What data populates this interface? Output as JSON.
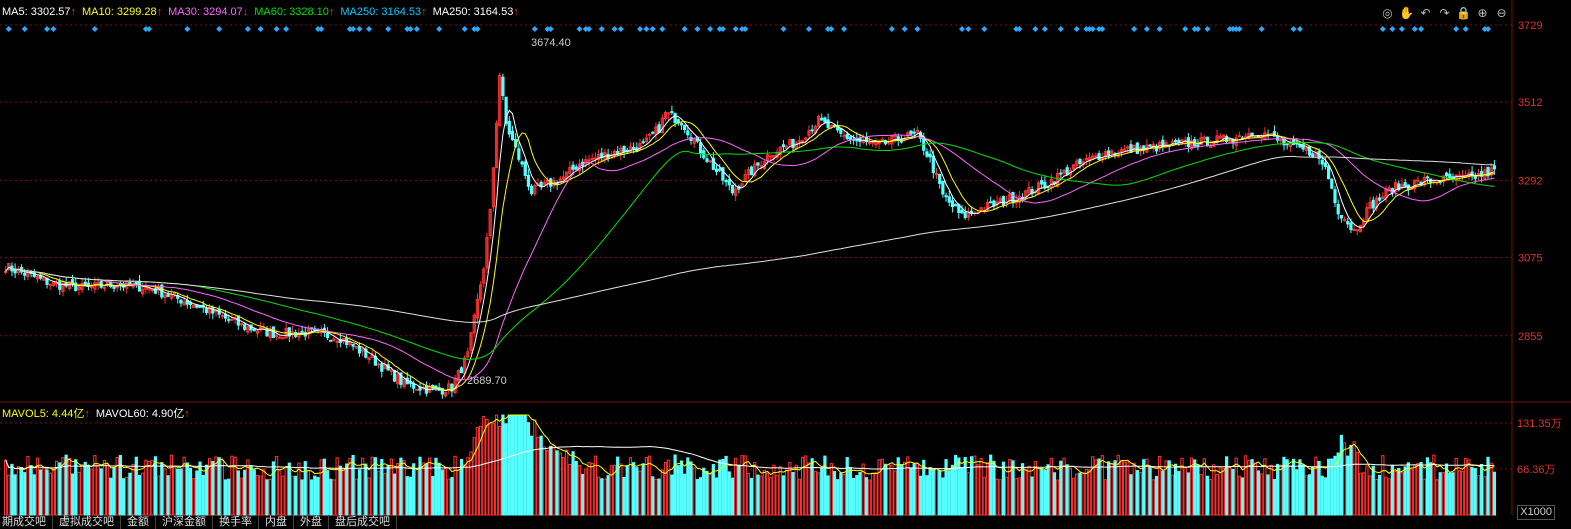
{
  "price_legend": [
    {
      "label": "MA5: 3302.57",
      "arrow": "↑",
      "color": "#ffffff"
    },
    {
      "label": "MA10: 3299.28",
      "arrow": "↑",
      "color": "#ffff00"
    },
    {
      "label": "MA30: 3294.07",
      "arrow": "↓",
      "color": "#ff66ff"
    },
    {
      "label": "MA60: 3328.10",
      "arrow": "↑",
      "color": "#00e000"
    },
    {
      "label": "MA250: 3164.53",
      "arrow": "↑",
      "color": "#00ccff"
    },
    {
      "label": "MA250: 3164.53",
      "arrow": "↑",
      "color": "#ffffff"
    }
  ],
  "vol_legend": [
    {
      "label": "MAVOL5: 4.44亿",
      "arrow": "↑",
      "color": "#ffff00"
    },
    {
      "label": "MAVOL60: 4.90亿",
      "arrow": "↑",
      "color": "#ffffff"
    }
  ],
  "toolbar": [
    "eye-icon",
    "hand-icon",
    "undo-icon",
    "redo-icon",
    "lock-icon",
    "zoom-in-icon",
    "zoom-out-icon"
  ],
  "toolbar_glyphs": [
    "◎",
    "✋",
    "↶",
    "↷",
    "🔒",
    "⊕",
    "⊖"
  ],
  "tabs": [
    "期成交吧",
    "虚拟成交吧",
    "金额",
    "沪深金额",
    "换手率",
    "内盘",
    "外盘",
    "盘后成交吧"
  ],
  "multiplier": "X1000",
  "chart_data": {
    "type": "candlestick",
    "price_axis": {
      "ticks": [
        3729,
        3512,
        3292,
        3075,
        2855
      ],
      "range": [
        2680,
        3760
      ]
    },
    "volume_axis": {
      "ticks": [
        "131.35万",
        "66.36万"
      ]
    },
    "annotations": {
      "high": "3674.40",
      "low": "2689.70"
    },
    "candles": {
      "count": 300,
      "segments": [
        [
          0,
          3050
        ],
        [
          15,
          3000
        ],
        [
          25,
          2990
        ],
        [
          35,
          3000
        ],
        [
          45,
          2990
        ],
        [
          60,
          2940
        ],
        [
          75,
          2880
        ],
        [
          85,
          2860
        ],
        [
          95,
          2865
        ],
        [
          105,
          2850
        ],
        [
          115,
          2790
        ],
        [
          125,
          2720
        ],
        [
          135,
          2700
        ],
        [
          140,
          2710
        ],
        [
          145,
          2800
        ],
        [
          150,
          3050
        ],
        [
          152,
          3200
        ],
        [
          155,
          3590
        ],
        [
          157,
          3450
        ],
        [
          160,
          3380
        ],
        [
          165,
          3260
        ],
        [
          170,
          3280
        ],
        [
          175,
          3300
        ],
        [
          180,
          3340
        ],
        [
          190,
          3370
        ],
        [
          200,
          3390
        ],
        [
          205,
          3440
        ],
        [
          207,
          3480
        ],
        [
          212,
          3460
        ],
        [
          217,
          3390
        ],
        [
          222,
          3330
        ],
        [
          228,
          3260
        ],
        [
          232,
          3300
        ],
        [
          240,
          3370
        ],
        [
          248,
          3400
        ],
        [
          255,
          3460
        ],
        [
          262,
          3420
        ],
        [
          268,
          3400
        ],
        [
          274,
          3390
        ],
        [
          280,
          3410
        ],
        [
          286,
          3420
        ],
        [
          290,
          3350
        ],
        [
          294,
          3250
        ],
        [
          298,
          3210
        ],
        [
          300,
          3190
        ],
        [
          305,
          3210
        ],
        [
          312,
          3230
        ],
        [
          318,
          3250
        ],
        [
          326,
          3280
        ],
        [
          335,
          3330
        ],
        [
          345,
          3370
        ],
        [
          355,
          3380
        ],
        [
          365,
          3390
        ],
        [
          375,
          3400
        ],
        [
          385,
          3410
        ],
        [
          392,
          3430
        ],
        [
          396,
          3420
        ],
        [
          402,
          3390
        ],
        [
          410,
          3370
        ],
        [
          414,
          3330
        ],
        [
          418,
          3210
        ],
        [
          423,
          3150
        ],
        [
          428,
          3220
        ],
        [
          435,
          3270
        ],
        [
          445,
          3290
        ],
        [
          460,
          3300
        ],
        [
          467,
          3320
        ]
      ]
    },
    "ma_overlays": [
      "MA5",
      "MA10",
      "MA30",
      "MA60",
      "MA250"
    ]
  }
}
